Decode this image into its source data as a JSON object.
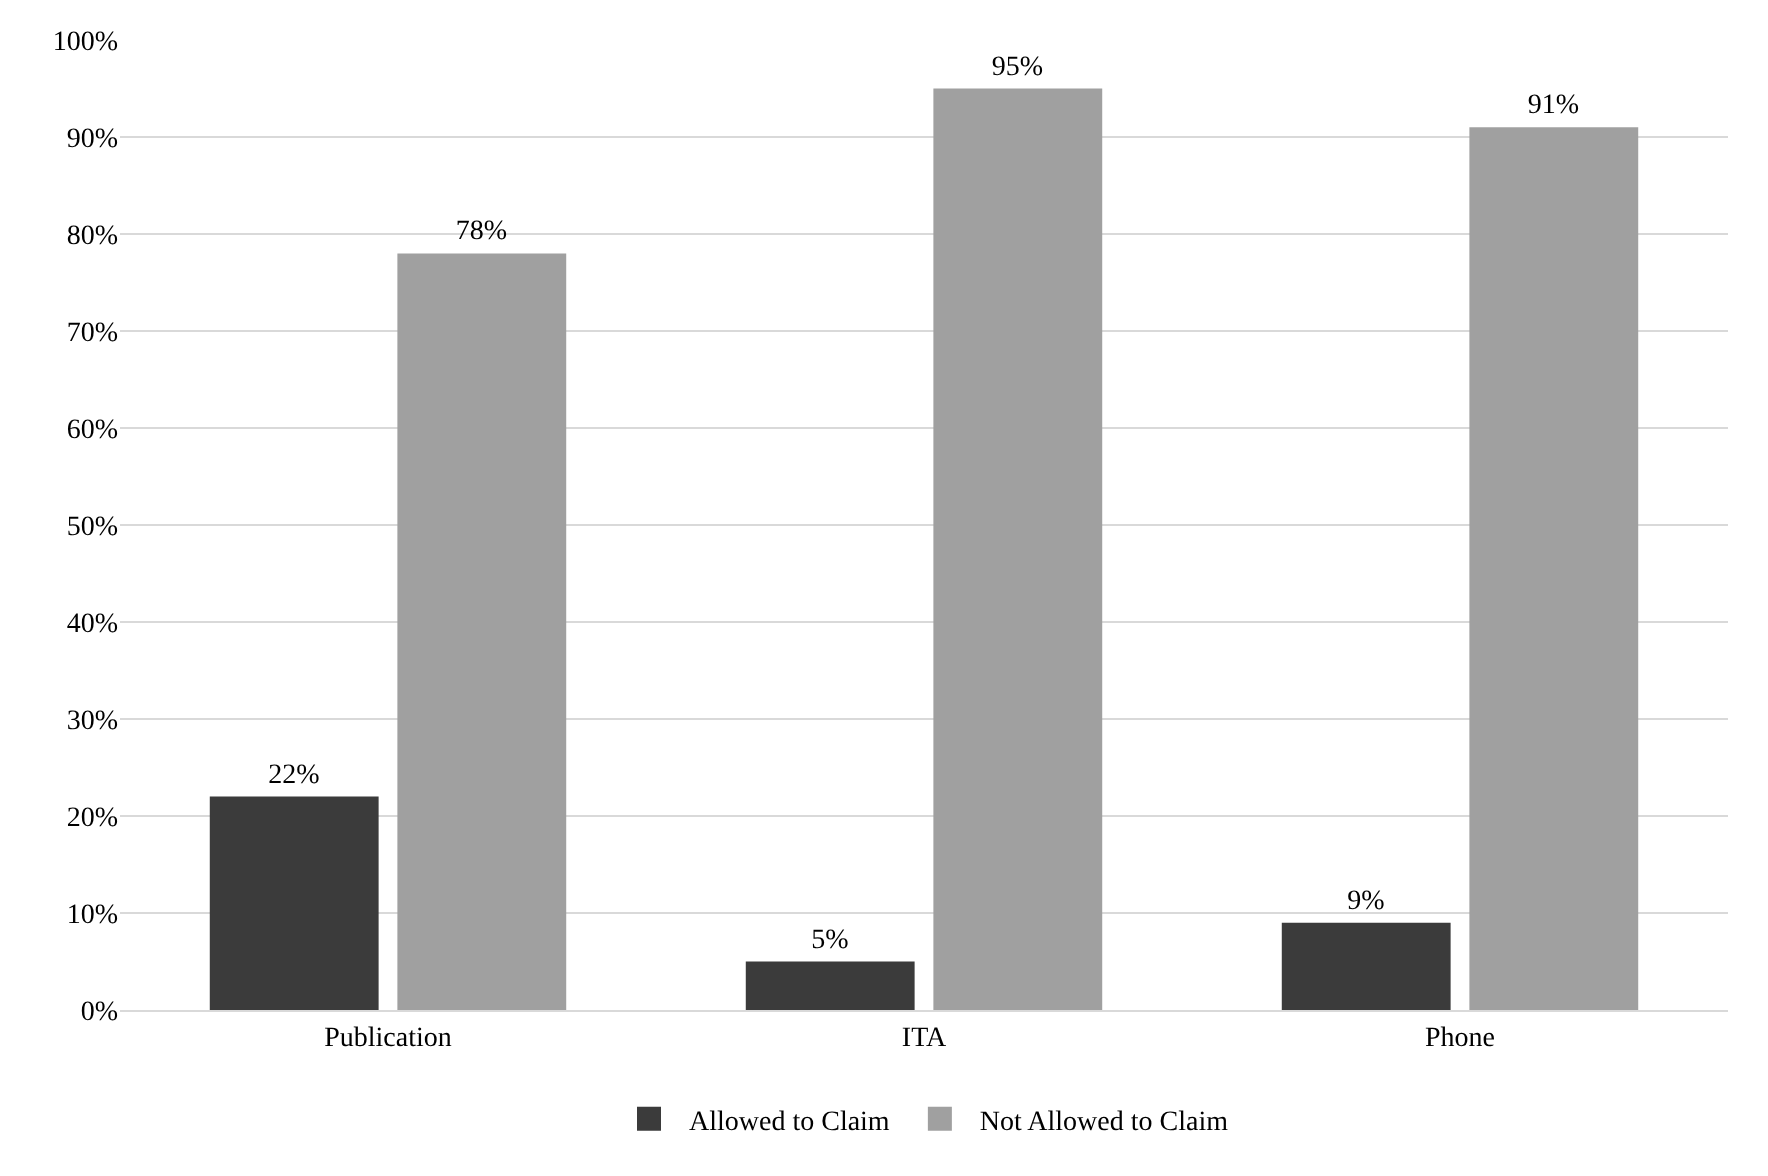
{
  "chart_data": {
    "type": "bar",
    "categories": [
      "Publication",
      "ITA",
      "Phone"
    ],
    "series": [
      {
        "name": "Allowed to Claim",
        "color": "#3b3b3b",
        "values": [
          22,
          5,
          9
        ],
        "value_labels": [
          "22%",
          "5%",
          "9%"
        ]
      },
      {
        "name": "Not Allowed to Claim",
        "color": "#a0a0a0",
        "values": [
          78,
          95,
          91
        ],
        "value_labels": [
          "78%",
          "95%",
          "91%"
        ]
      }
    ],
    "ylim": [
      0,
      100
    ],
    "yticks": [
      {
        "value": 0,
        "label": "0%"
      },
      {
        "value": 10,
        "label": "10%"
      },
      {
        "value": 20,
        "label": "20%"
      },
      {
        "value": 30,
        "label": "30%"
      },
      {
        "value": 40,
        "label": "40%"
      },
      {
        "value": 50,
        "label": "50%"
      },
      {
        "value": 60,
        "label": "60%"
      },
      {
        "value": 70,
        "label": "70%"
      },
      {
        "value": 80,
        "label": "80%"
      },
      {
        "value": 90,
        "label": "90%"
      },
      {
        "value": 100,
        "label": "100%"
      }
    ],
    "grid": "y",
    "legend": "bottom"
  }
}
